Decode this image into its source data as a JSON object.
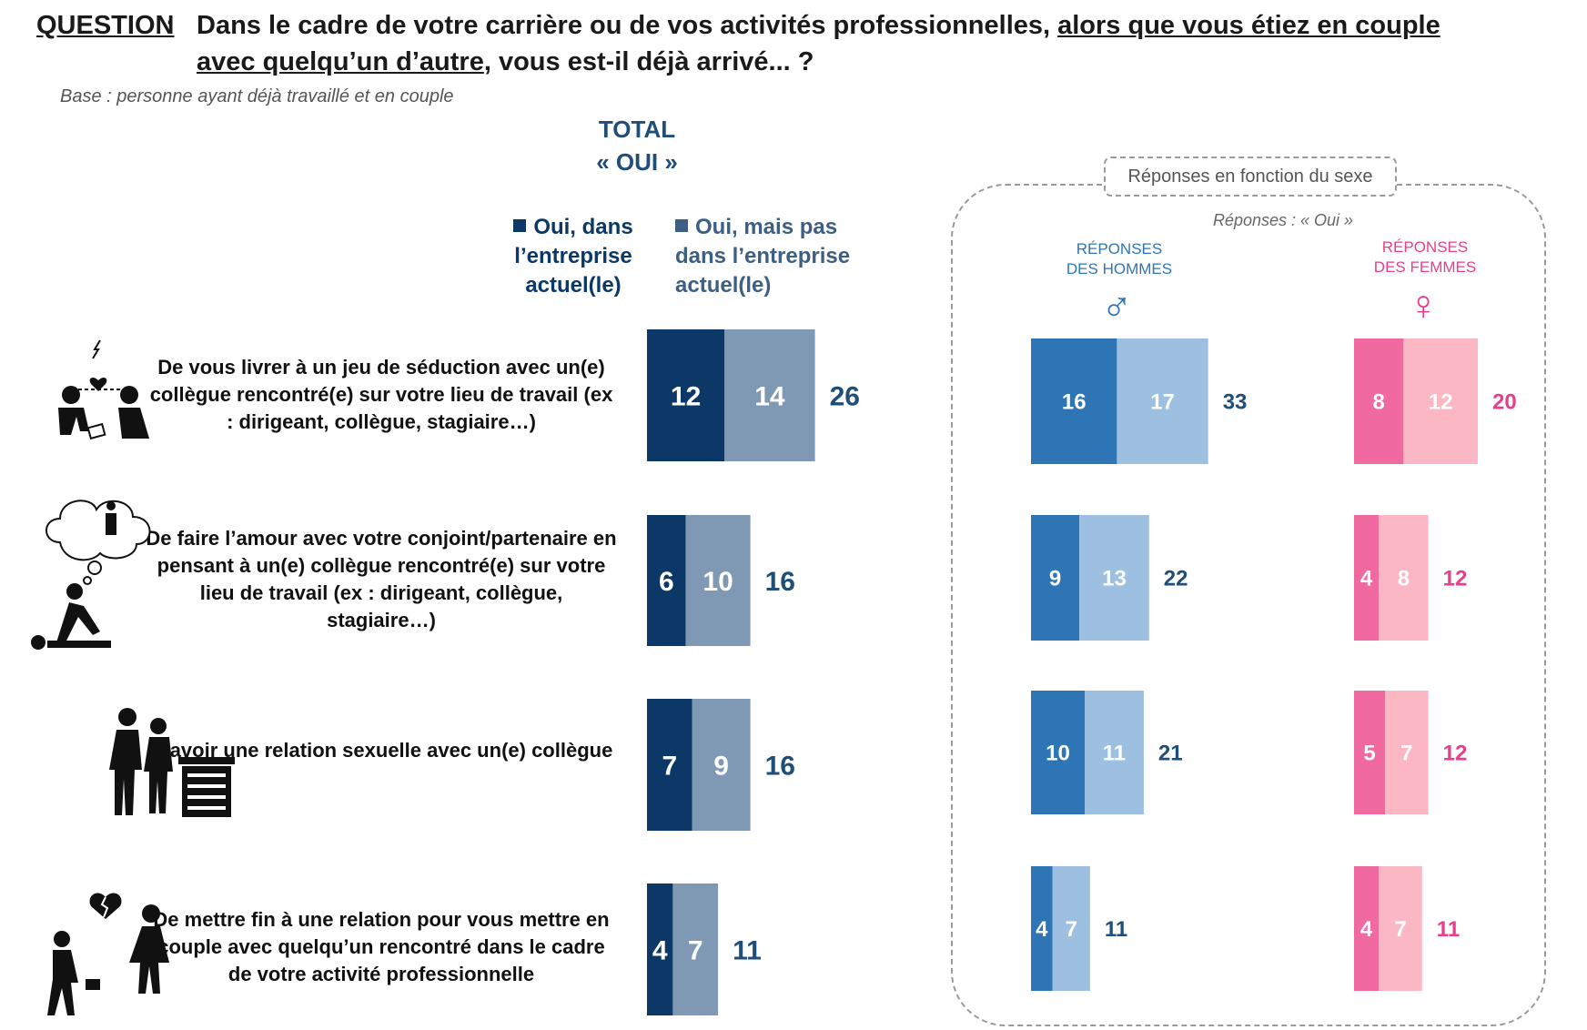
{
  "question": {
    "label": "QUESTION",
    "colon": ":",
    "text_before": "Dans le cadre de votre carrière ou de vos activités professionnelles, ",
    "text_underlined": "alors que vous étiez en couple avec quelqu’un d’autre",
    "text_after": ", vous est-il déjà arrivé... ?"
  },
  "base": "Base : personne ayant déjà travaillé et en couple",
  "total_header": {
    "line1": "TOTAL",
    "line2": "« OUI »"
  },
  "legend": [
    {
      "label": "Oui, dans l’entreprise actuel(le)",
      "color": "#0b3866"
    },
    {
      "label": "Oui, mais pas dans l’entreprise actuel(le)",
      "color": "#7f98b3"
    }
  ],
  "gender_group": {
    "tag": "Réponses en fonction du sexe",
    "subtitle": "Réponses : « Oui »",
    "men_header": [
      "RÉPONSES",
      "DES HOMMES"
    ],
    "women_header": [
      "RÉPONSES",
      "DES FEMMES"
    ],
    "men_symbol": "♂",
    "women_symbol": "♀"
  },
  "rows": [
    {
      "label": "De vous livrer à un jeu de séduction avec un(e) collègue rencontré(e) sur votre lieu de travail (ex : dirigeant, collègue, stagiaire…)"
    },
    {
      "label": "De faire l’amour avec votre conjoint/partenaire en pensant à un(e) collègue rencontré(e) sur votre lieu de travail (ex : dirigeant, collègue, stagiaire…)"
    },
    {
      "label": "D’avoir une relation sexuelle avec un(e) collègue"
    },
    {
      "label": "De mettre fin à une relation pour vous mettre en couple avec quelqu’un rencontré dans le cadre de votre activité professionnelle"
    }
  ],
  "chart_data": [
    {
      "type": "bar",
      "stacked": true,
      "orientation": "horizontal",
      "title": "TOTAL « OUI »",
      "categories": [
        "De vous livrer à un jeu de séduction avec un(e) collègue rencontré(e) sur votre lieu de travail (ex : dirigeant, collègue, stagiaire…)",
        "De faire l’amour avec votre conjoint/partenaire en pensant à un(e) collègue rencontré(e) sur votre lieu de travail (ex : dirigeant, collègue, stagiaire…)",
        "D’avoir une relation sexuelle avec un(e) collègue",
        "De mettre fin à une relation pour vous mettre en couple avec quelqu’un rencontré dans le cadre de votre activité professionnelle"
      ],
      "series": [
        {
          "name": "Oui, dans l’entreprise actuel(le)",
          "values": [
            12,
            6,
            7,
            4
          ],
          "color": "#0b3866"
        },
        {
          "name": "Oui, mais pas dans l’entreprise actuel(le)",
          "values": [
            14,
            10,
            9,
            7
          ],
          "color": "#7f98b3"
        }
      ],
      "totals": [
        26,
        16,
        16,
        11
      ],
      "total_color": "#1f4e79"
    },
    {
      "type": "bar",
      "stacked": true,
      "orientation": "horizontal",
      "title": "RÉPONSES DES HOMMES",
      "series": [
        {
          "name": "Oui, dans l’entreprise actuel(le)",
          "values": [
            16,
            9,
            10,
            4
          ],
          "color": "#2e75b6"
        },
        {
          "name": "Oui, mais pas dans l’entreprise actuel(le)",
          "values": [
            17,
            13,
            11,
            7
          ],
          "color": "#9dbfe0"
        }
      ],
      "totals": [
        33,
        22,
        21,
        11
      ],
      "total_color": "#1f4e79"
    },
    {
      "type": "bar",
      "stacked": true,
      "orientation": "horizontal",
      "title": "RÉPONSES DES FEMMES",
      "series": [
        {
          "name": "Oui, dans l’entreprise actuel(le)",
          "values": [
            8,
            4,
            5,
            4
          ],
          "color": "#f06aa0"
        },
        {
          "name": "Oui, mais pas dans l’entreprise actuel(le)",
          "values": [
            12,
            8,
            7,
            7
          ],
          "color": "#fbb7c3"
        }
      ],
      "totals": [
        20,
        12,
        12,
        11
      ],
      "total_color": "#e83e8c"
    }
  ]
}
